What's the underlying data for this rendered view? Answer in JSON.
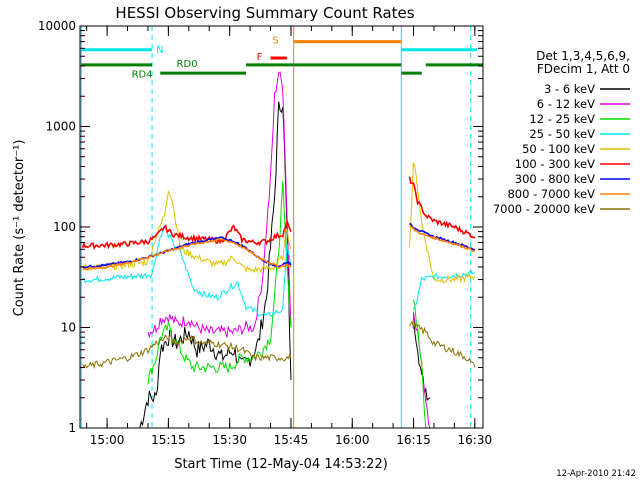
{
  "chart_data": {
    "type": "line",
    "title": "HESSI Observing Summary Count Rates",
    "xlabel": "Start Time (12-May-04 14:53:22)",
    "ylabel": "Count Rate (s⁻¹ detector⁻¹)",
    "y_scale": "log",
    "ylim": [
      1,
      10000
    ],
    "xlim": [
      "14:53:22",
      "16:32:00"
    ],
    "xticks": [
      "15:00",
      "15:15",
      "15:30",
      "15:45",
      "16:00",
      "16:15",
      "16:30"
    ],
    "yticks": [
      "1",
      "10",
      "100",
      "1000",
      "10000"
    ],
    "legend_title": [
      "Det 1,3,4,5,6,9,",
      "FDecim 1, Att 0"
    ],
    "legend_position": "right",
    "timestamp": "12-Apr-2010 21:42",
    "series": [
      {
        "name": "3 - 6 keV",
        "color": "#000000",
        "points": [
          [
            "15:08",
            1
          ],
          [
            "15:10",
            2
          ],
          [
            "15:12",
            2
          ],
          [
            "15:13",
            6
          ],
          [
            "15:15",
            8
          ],
          [
            "15:17",
            7
          ],
          [
            "15:20",
            9
          ],
          [
            "15:22",
            6
          ],
          [
            "15:25",
            7
          ],
          [
            "15:28",
            5
          ],
          [
            "15:31",
            6
          ],
          [
            "15:33",
            4
          ],
          [
            "15:35",
            5
          ],
          [
            "15:37",
            7
          ],
          [
            "15:39",
            20
          ],
          [
            "15:41",
            200
          ],
          [
            "15:42",
            1500
          ],
          [
            "15:43",
            1800
          ],
          [
            "15:44",
            100
          ],
          [
            "15:45",
            3
          ]
        ],
        "points_after": [
          [
            "16:15",
            12
          ],
          [
            "16:16",
            7
          ],
          [
            "16:17",
            3
          ],
          [
            "16:19",
            2
          ]
        ]
      },
      {
        "name": "6 - 12 keV",
        "color": "#e000e0",
        "points": [
          [
            "15:10",
            9
          ],
          [
            "15:12",
            10
          ],
          [
            "15:13",
            12
          ],
          [
            "15:15",
            13
          ],
          [
            "15:17",
            11
          ],
          [
            "15:20",
            12
          ],
          [
            "15:22",
            10
          ],
          [
            "15:25",
            9
          ],
          [
            "15:28",
            9
          ],
          [
            "15:31",
            9
          ],
          [
            "15:34",
            10
          ],
          [
            "15:36",
            10
          ],
          [
            "15:38",
            30
          ],
          [
            "15:40",
            300
          ],
          [
            "15:41",
            2000
          ],
          [
            "15:42",
            3500
          ],
          [
            "15:43",
            2500
          ],
          [
            "15:44",
            150
          ],
          [
            "15:45",
            10
          ]
        ],
        "points_after": [
          [
            "16:15",
            15
          ],
          [
            "16:16",
            9
          ],
          [
            "16:17",
            4
          ],
          [
            "16:18",
            2
          ],
          [
            "16:19",
            1
          ]
        ]
      },
      {
        "name": "12 - 25 keV",
        "color": "#00dd00",
        "points": [
          [
            "15:10",
            3
          ],
          [
            "15:12",
            5
          ],
          [
            "15:13",
            8
          ],
          [
            "15:15",
            10
          ],
          [
            "15:17",
            7
          ],
          [
            "15:19",
            5
          ],
          [
            "15:21",
            4
          ],
          [
            "15:24",
            4
          ],
          [
            "15:27",
            4
          ],
          [
            "15:30",
            4
          ],
          [
            "15:33",
            5
          ],
          [
            "15:36",
            5
          ],
          [
            "15:38",
            6
          ],
          [
            "15:40",
            8
          ],
          [
            "15:41",
            20
          ],
          [
            "15:42",
            60
          ],
          [
            "15:43",
            250
          ],
          [
            "15:44",
            40
          ],
          [
            "15:45",
            10
          ]
        ],
        "points_after": [
          [
            "16:15",
            20
          ],
          [
            "16:16",
            10
          ],
          [
            "16:17",
            4
          ],
          [
            "16:18",
            1
          ]
        ]
      },
      {
        "name": "25 - 50 keV",
        "color": "#00e8e8",
        "points": [
          [
            "14:54",
            30
          ],
          [
            "14:57",
            30
          ],
          [
            "15:00",
            31
          ],
          [
            "15:05",
            32
          ],
          [
            "15:09",
            33
          ],
          [
            "15:11",
            34
          ],
          [
            "15:13",
            80
          ],
          [
            "15:14",
            100
          ],
          [
            "15:16",
            70
          ],
          [
            "15:18",
            55
          ],
          [
            "15:21",
            25
          ],
          [
            "15:24",
            21
          ],
          [
            "15:27",
            20
          ],
          [
            "15:30",
            25
          ],
          [
            "15:32",
            28
          ],
          [
            "15:34",
            16
          ],
          [
            "15:37",
            14
          ],
          [
            "15:39",
            13
          ],
          [
            "15:41",
            14
          ],
          [
            "15:43",
            15
          ],
          [
            "15:44",
            70
          ],
          [
            "15:45",
            40
          ]
        ],
        "points_after": [
          [
            "16:15",
            14
          ],
          [
            "16:16",
            20
          ],
          [
            "16:17",
            30
          ],
          [
            "16:20",
            32
          ],
          [
            "16:25",
            33
          ],
          [
            "16:30",
            35
          ]
        ]
      },
      {
        "name": "50 - 100 keV",
        "color": "#e0c000",
        "points": [
          [
            "14:54",
            40
          ],
          [
            "15:00",
            40
          ],
          [
            "15:05",
            42
          ],
          [
            "15:10",
            45
          ],
          [
            "15:12",
            80
          ],
          [
            "15:14",
            130
          ],
          [
            "15:15",
            240
          ],
          [
            "15:16",
            180
          ],
          [
            "15:18",
            60
          ],
          [
            "15:20",
            55
          ],
          [
            "15:22",
            50
          ],
          [
            "15:25",
            45
          ],
          [
            "15:27",
            42
          ],
          [
            "15:29",
            45
          ],
          [
            "15:31",
            50
          ],
          [
            "15:33",
            40
          ],
          [
            "15:35",
            37
          ],
          [
            "15:38",
            38
          ],
          [
            "15:41",
            40
          ],
          [
            "15:43",
            50
          ],
          [
            "15:44",
            100
          ],
          [
            "15:45",
            60
          ]
        ],
        "points_after": [
          [
            "16:14",
            60
          ],
          [
            "16:15",
            450
          ],
          [
            "16:16",
            250
          ],
          [
            "16:17",
            110
          ],
          [
            "16:18",
            70
          ],
          [
            "16:20",
            30
          ],
          [
            "16:25",
            30
          ],
          [
            "16:30",
            32
          ]
        ]
      },
      {
        "name": "100 - 300 keV",
        "color": "#ff0000",
        "points": [
          [
            "14:54",
            65
          ],
          [
            "15:00",
            66
          ],
          [
            "15:05",
            68
          ],
          [
            "15:10",
            72
          ],
          [
            "15:12",
            80
          ],
          [
            "15:14",
            100
          ],
          [
            "15:16",
            85
          ],
          [
            "15:20",
            78
          ],
          [
            "15:25",
            75
          ],
          [
            "15:28",
            72
          ],
          [
            "15:31",
            100
          ],
          [
            "15:33",
            75
          ],
          [
            "15:36",
            70
          ],
          [
            "15:39",
            72
          ],
          [
            "15:41",
            80
          ],
          [
            "15:43",
            85
          ],
          [
            "15:44",
            110
          ],
          [
            "15:45",
            90
          ]
        ],
        "points_after": [
          [
            "16:14",
            300
          ],
          [
            "16:15",
            260
          ],
          [
            "16:16",
            180
          ],
          [
            "16:18",
            130
          ],
          [
            "16:20",
            115
          ],
          [
            "16:25",
            100
          ],
          [
            "16:30",
            80
          ]
        ]
      },
      {
        "name": "300 - 800 keV",
        "color": "#0000ff",
        "points": [
          [
            "14:54",
            40
          ],
          [
            "15:00",
            42
          ],
          [
            "15:05",
            45
          ],
          [
            "15:10",
            50
          ],
          [
            "15:15",
            58
          ],
          [
            "15:20",
            68
          ],
          [
            "15:25",
            75
          ],
          [
            "15:28",
            78
          ],
          [
            "15:31",
            72
          ],
          [
            "15:34",
            62
          ],
          [
            "15:37",
            50
          ],
          [
            "15:40",
            43
          ],
          [
            "15:42",
            40
          ],
          [
            "15:44",
            45
          ],
          [
            "15:45",
            42
          ]
        ],
        "points_after": [
          [
            "16:14",
            110
          ],
          [
            "16:15",
            100
          ],
          [
            "16:17",
            90
          ],
          [
            "16:20",
            80
          ],
          [
            "16:25",
            70
          ],
          [
            "16:30",
            60
          ]
        ]
      },
      {
        "name": "800 - 7000 keV",
        "color": "#ff8000",
        "points": [
          [
            "14:54",
            38
          ],
          [
            "15:00",
            40
          ],
          [
            "15:05",
            44
          ],
          [
            "15:10",
            50
          ],
          [
            "15:15",
            58
          ],
          [
            "15:20",
            66
          ],
          [
            "15:25",
            72
          ],
          [
            "15:28",
            75
          ],
          [
            "15:31",
            70
          ],
          [
            "15:34",
            60
          ],
          [
            "15:37",
            50
          ],
          [
            "15:40",
            44
          ],
          [
            "15:42",
            40
          ],
          [
            "15:44",
            42
          ],
          [
            "15:45",
            40
          ]
        ],
        "points_after": [
          [
            "16:14",
            105
          ],
          [
            "16:15",
            95
          ],
          [
            "16:17",
            85
          ],
          [
            "16:20",
            78
          ],
          [
            "16:25",
            68
          ],
          [
            "16:30",
            58
          ]
        ]
      },
      {
        "name": "7000 - 20000 keV",
        "color": "#8b7000",
        "points": [
          [
            "14:54",
            4
          ],
          [
            "15:00",
            4.5
          ],
          [
            "15:05",
            5
          ],
          [
            "15:08",
            5.5
          ],
          [
            "15:10",
            6
          ],
          [
            "15:12",
            7
          ],
          [
            "15:15",
            8
          ],
          [
            "15:17",
            7
          ],
          [
            "15:20",
            8
          ],
          [
            "15:23",
            7
          ],
          [
            "15:26",
            7
          ],
          [
            "15:30",
            6.5
          ],
          [
            "15:33",
            6
          ],
          [
            "15:36",
            5
          ],
          [
            "15:39",
            5
          ],
          [
            "15:42",
            5
          ],
          [
            "15:45",
            5
          ]
        ],
        "points_after": [
          [
            "16:14",
            11
          ],
          [
            "16:16",
            10
          ],
          [
            "16:18",
            9
          ],
          [
            "16:20",
            7
          ],
          [
            "16:24",
            6
          ],
          [
            "16:28",
            5
          ],
          [
            "16:30",
            4
          ]
        ]
      }
    ],
    "vertical_markers": [
      {
        "t": "14:53:40",
        "color": "#00e8e8",
        "style": "solid"
      },
      {
        "t": "15:11",
        "color": "#00e8e8",
        "style": "dashed"
      },
      {
        "t": "15:45:40",
        "color": "#ff8000",
        "style": "solid"
      },
      {
        "t": "16:12",
        "color": "#00e8e8",
        "style": "solid"
      },
      {
        "t": "16:29",
        "color": "#00e8e8",
        "style": "dashed"
      }
    ],
    "state_bars": [
      {
        "label": "N",
        "color": "#00e8e8",
        "y": 5800,
        "segments": [
          [
            "14:53:40",
            "15:11"
          ],
          [
            "16:12",
            "16:30:30"
          ]
        ]
      },
      {
        "label": "S",
        "color": "#ff8000",
        "y": 7000,
        "segments": [
          [
            "15:45:40",
            "16:12"
          ]
        ]
      },
      {
        "label": "F",
        "color": "#ff0000",
        "y": 4800,
        "segments": [
          [
            "15:40",
            "15:44"
          ]
        ]
      },
      {
        "label": "RD0",
        "color": "#008000",
        "y": 4100,
        "segments": [
          [
            "14:53:40",
            "15:11"
          ],
          [
            "15:34",
            "16:12"
          ],
          [
            "16:18",
            "16:32"
          ]
        ]
      },
      {
        "label": "RD4",
        "color": "#008000",
        "y": 3400,
        "segments": [
          [
            "15:13",
            "15:34"
          ],
          [
            "16:12",
            "16:17"
          ]
        ]
      }
    ]
  }
}
